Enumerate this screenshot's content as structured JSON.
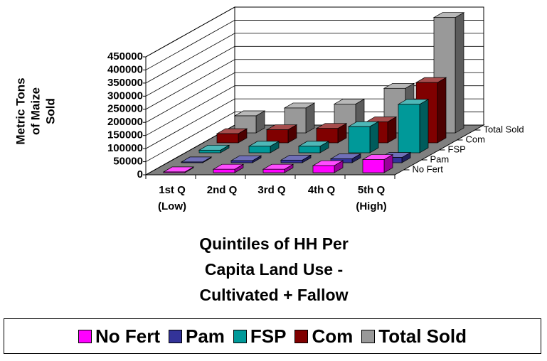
{
  "chart_data": {
    "type": "bar3d",
    "y_label": "Metric Tons\nof Maize\nSold",
    "x_label": "Quintiles of HH Per\nCapita Land Use -\nCultivated + Fallow",
    "categories": [
      "1st Q\n(Low)",
      "2nd Q",
      "3rd Q",
      "4th Q",
      "5th Q\n(High)"
    ],
    "series": [
      {
        "name": "No Fert",
        "color": "#ff00ff",
        "values": [
          3000,
          13000,
          13000,
          27000,
          50000
        ]
      },
      {
        "name": "Pam",
        "color": "#333399",
        "values": [
          3000,
          8000,
          10000,
          15000,
          20000
        ]
      },
      {
        "name": "FSP",
        "color": "#009999",
        "values": [
          10000,
          25000,
          25000,
          100000,
          185000
        ]
      },
      {
        "name": "Com",
        "color": "#800000",
        "values": [
          35000,
          50000,
          55000,
          80000,
          230000
        ]
      },
      {
        "name": "Total Sold",
        "color": "#999999",
        "values": [
          65000,
          95000,
          110000,
          170000,
          440000
        ]
      }
    ],
    "ylim": [
      0,
      450000
    ],
    "yticks": [
      0,
      50000,
      100000,
      150000,
      200000,
      250000,
      300000,
      350000,
      400000,
      450000
    ],
    "grid": true
  }
}
